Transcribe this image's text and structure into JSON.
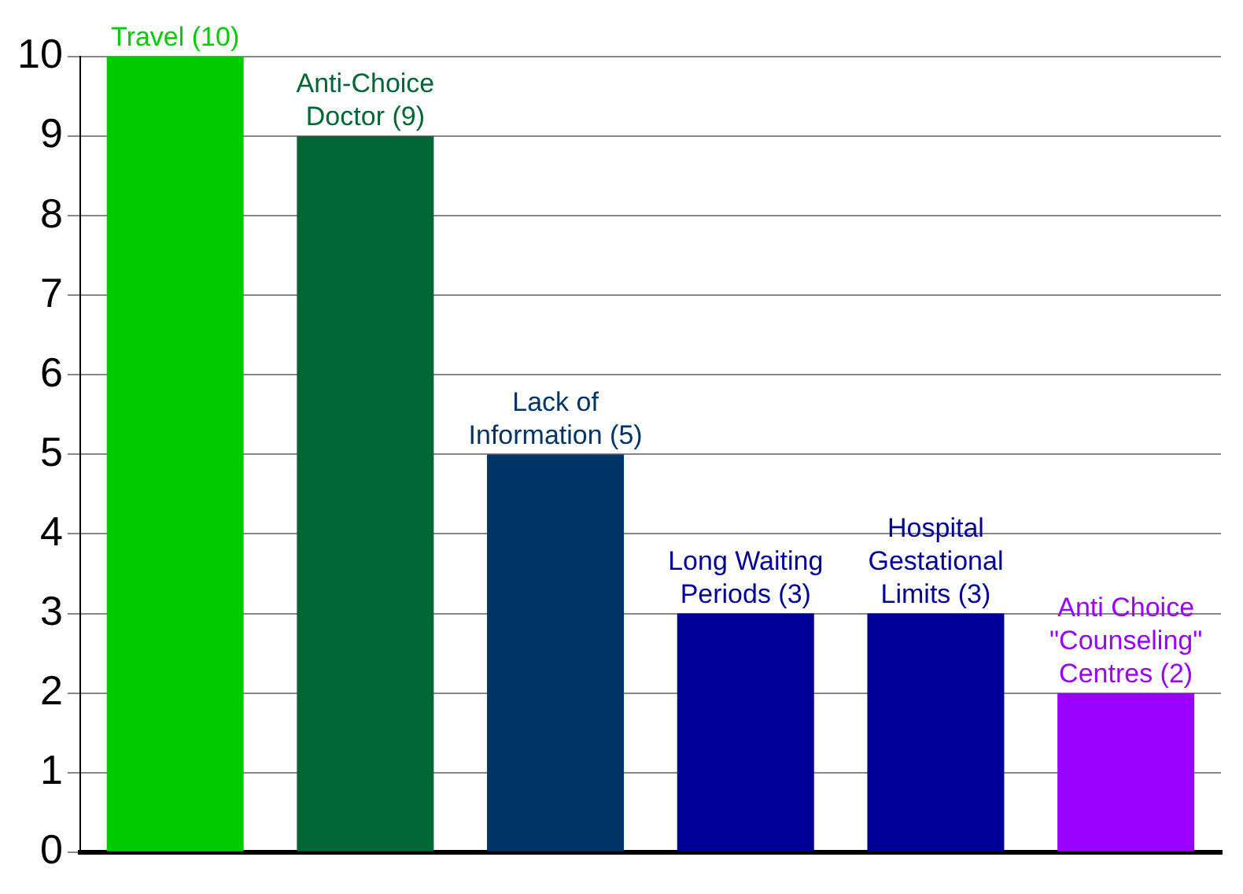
{
  "chart_data": {
    "type": "bar",
    "categories": [
      "Travel (10)",
      "Anti-Choice Doctor (9)",
      "Lack of Information (5)",
      "Long Waiting Periods (3)",
      "Hospital Gestational Limits (3)",
      "Anti Choice \"Counseling\" Centres (2)"
    ],
    "values": [
      10,
      9,
      5,
      3,
      3,
      2
    ],
    "colors": [
      "#00cc00",
      "#006633",
      "#003366",
      "#000099",
      "#000099",
      "#9900ff"
    ],
    "ylim": [
      0,
      10
    ],
    "yticks": [
      0,
      1,
      2,
      3,
      4,
      5,
      6,
      7,
      8,
      9,
      10
    ],
    "grid": "y",
    "legend": false
  }
}
